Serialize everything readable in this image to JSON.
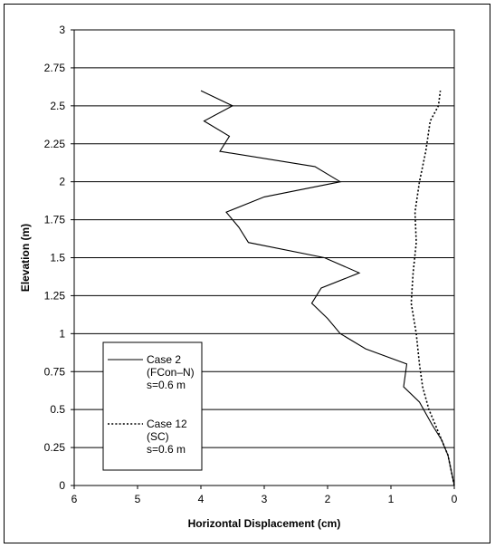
{
  "chart_data": {
    "type": "line",
    "xlabel": "Horizontal Displacement (cm)",
    "ylabel": "Elevation (m)",
    "xlim": [
      6,
      0
    ],
    "ylim": [
      0,
      3
    ],
    "x_reversed": true,
    "x_ticks": [
      "6",
      "5",
      "4",
      "3",
      "2",
      "1",
      "0"
    ],
    "y_ticks": [
      "0",
      "0.25",
      "0.5",
      "0.75",
      "1",
      "1.25",
      "1.5",
      "1.75",
      "2",
      "2.25",
      "2.5",
      "2.75",
      "3"
    ],
    "grid": {
      "horizontal": true,
      "vertical": false
    },
    "legend": {
      "placement": "bottom-left",
      "entries": [
        {
          "lines": [
            "Case 2",
            "(FCon–N)",
            "s=0.6 m"
          ],
          "style": "solid"
        },
        {
          "lines": [
            "Case 12",
            "(SC)",
            "s=0.6 m"
          ],
          "style": "dotted"
        }
      ]
    },
    "series": [
      {
        "style": "solid",
        "color": "#000000",
        "points": [
          [
            0.0,
            0.0
          ],
          [
            0.05,
            0.1
          ],
          [
            0.1,
            0.2
          ],
          [
            0.2,
            0.3
          ],
          [
            0.35,
            0.4
          ],
          [
            0.55,
            0.55
          ],
          [
            0.8,
            0.65
          ],
          [
            0.75,
            0.8
          ],
          [
            1.4,
            0.9
          ],
          [
            1.8,
            1.0
          ],
          [
            2.0,
            1.1
          ],
          [
            2.25,
            1.2
          ],
          [
            2.1,
            1.3
          ],
          [
            1.5,
            1.4
          ],
          [
            2.05,
            1.5
          ],
          [
            3.25,
            1.6
          ],
          [
            3.4,
            1.7
          ],
          [
            3.6,
            1.8
          ],
          [
            3.0,
            1.9
          ],
          [
            1.8,
            2.0
          ],
          [
            2.2,
            2.1
          ],
          [
            3.7,
            2.2
          ],
          [
            3.55,
            2.3
          ],
          [
            3.95,
            2.4
          ],
          [
            3.5,
            2.5
          ],
          [
            4.0,
            2.6
          ]
        ]
      },
      {
        "style": "dotted",
        "color": "#000000",
        "points": [
          [
            0.0,
            0.0
          ],
          [
            0.05,
            0.1
          ],
          [
            0.1,
            0.2
          ],
          [
            0.2,
            0.3
          ],
          [
            0.3,
            0.4
          ],
          [
            0.4,
            0.5
          ],
          [
            0.5,
            0.65
          ],
          [
            0.55,
            0.8
          ],
          [
            0.6,
            1.0
          ],
          [
            0.68,
            1.2
          ],
          [
            0.65,
            1.4
          ],
          [
            0.6,
            1.6
          ],
          [
            0.62,
            1.8
          ],
          [
            0.55,
            2.0
          ],
          [
            0.45,
            2.2
          ],
          [
            0.38,
            2.4
          ],
          [
            0.25,
            2.5
          ],
          [
            0.22,
            2.6
          ]
        ]
      }
    ]
  }
}
